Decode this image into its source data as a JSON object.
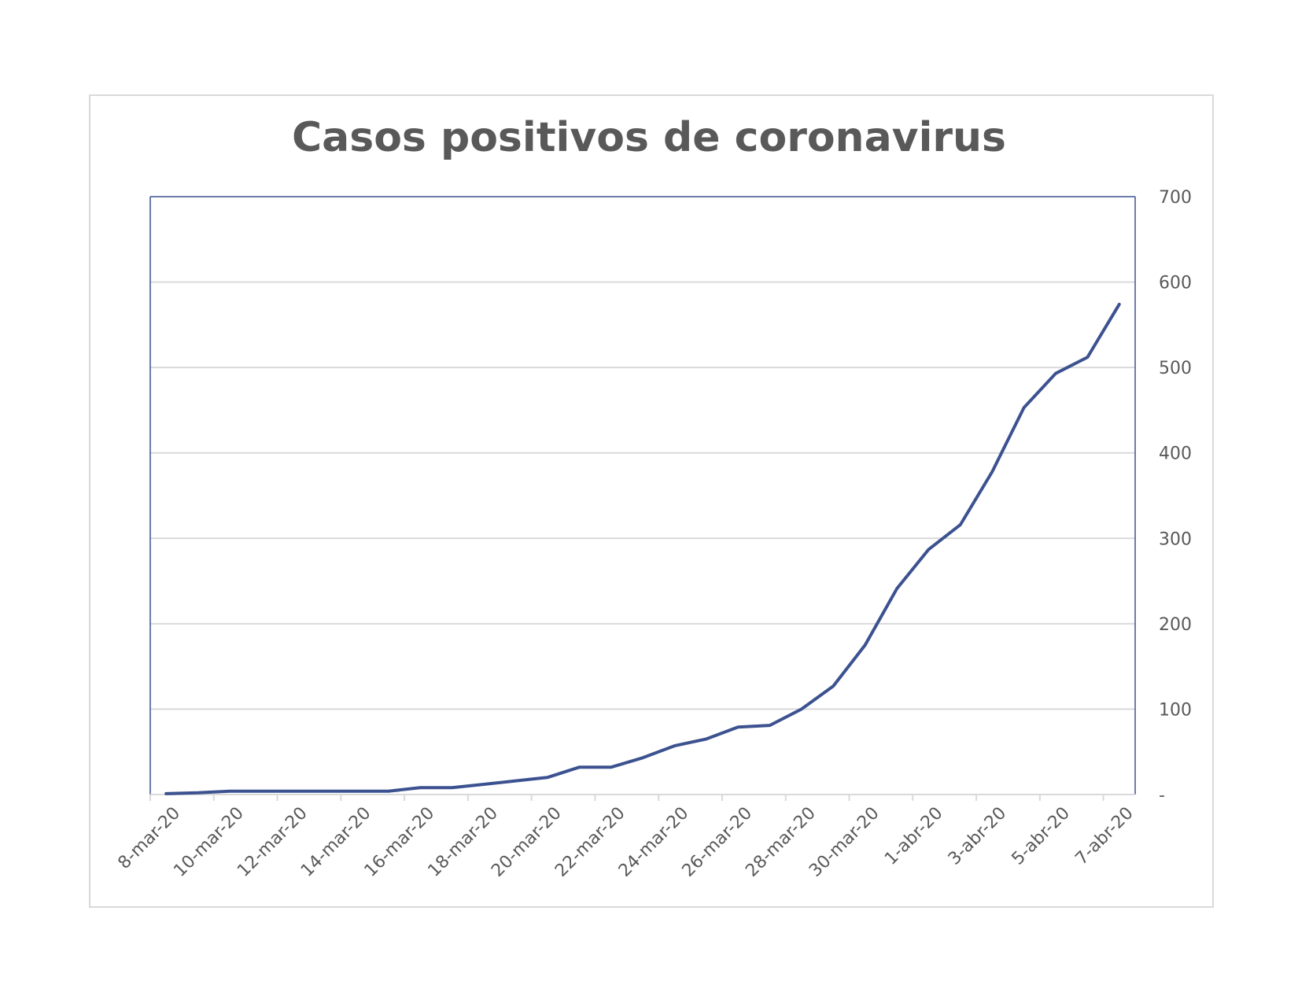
{
  "chart_data": {
    "type": "line",
    "title": "Casos positivos de coronavirus",
    "xlabel": "",
    "ylabel": "",
    "ylim": [
      0,
      700
    ],
    "yticks": [
      0,
      100,
      200,
      300,
      400,
      500,
      600,
      700
    ],
    "ytick_labels": [
      "-",
      "100",
      "200",
      "300",
      "400",
      "500",
      "600",
      "700"
    ],
    "y_axis_side": "right",
    "grid": true,
    "legend": "none",
    "line_color": "#3c5290",
    "x_tick_labels": [
      "8-mar-20",
      "10-mar-20",
      "12-mar-20",
      "14-mar-20",
      "16-mar-20",
      "18-mar-20",
      "20-mar-20",
      "22-mar-20",
      "24-mar-20",
      "26-mar-20",
      "28-mar-20",
      "30-mar-20",
      "1-abr-20",
      "3-abr-20",
      "5-abr-20",
      "7-abr-20"
    ],
    "x": [
      "8-mar-20",
      "9-mar-20",
      "10-mar-20",
      "11-mar-20",
      "12-mar-20",
      "13-mar-20",
      "14-mar-20",
      "15-mar-20",
      "16-mar-20",
      "17-mar-20",
      "18-mar-20",
      "19-mar-20",
      "20-mar-20",
      "21-mar-20",
      "22-mar-20",
      "23-mar-20",
      "24-mar-20",
      "25-mar-20",
      "26-mar-20",
      "27-mar-20",
      "28-mar-20",
      "29-mar-20",
      "30-mar-20",
      "31-mar-20",
      "1-abr-20",
      "2-abr-20",
      "3-abr-20",
      "4-abr-20",
      "5-abr-20",
      "6-abr-20",
      "7-abr-20"
    ],
    "series": [
      {
        "values": [
          1,
          2,
          4,
          4,
          4,
          4,
          4,
          4,
          8,
          8,
          12,
          16,
          20,
          32,
          32,
          43,
          57,
          65,
          79,
          81,
          100,
          127,
          175,
          241,
          287,
          316,
          378,
          453,
          493,
          512,
          574
        ]
      }
    ]
  }
}
